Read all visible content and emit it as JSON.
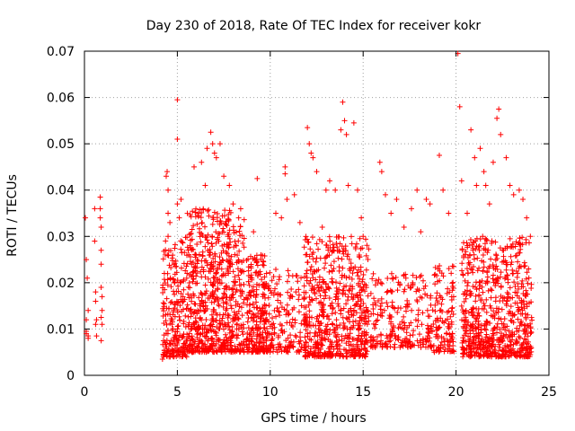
{
  "chart_data": {
    "type": "scatter",
    "title": "Day 230 of 2018, Rate Of TEC Index for receiver kokr",
    "xlabel": "GPS time / hours",
    "ylabel": "ROTI / TECUs",
    "xlim": [
      0,
      25
    ],
    "ylim": [
      0,
      0.07
    ],
    "xticks": [
      0,
      5,
      10,
      15,
      20,
      25
    ],
    "xtick_labels": [
      "0",
      "5",
      "10",
      "15",
      "20",
      "25"
    ],
    "yticks": [
      0,
      0.01,
      0.02,
      0.03,
      0.04,
      0.05,
      0.06,
      0.07
    ],
    "ytick_labels": [
      "0",
      "0.01",
      "0.02",
      "0.03",
      "0.04",
      "0.05",
      "0.06",
      "0.07"
    ],
    "grid": true,
    "marker": "+",
    "color": "#ff0000",
    "series": [
      {
        "name": "ROTI",
        "points": [
          [
            0.05,
            0.034
          ],
          [
            0.1,
            0.025
          ],
          [
            0.1,
            0.012
          ],
          [
            0.1,
            0.009
          ],
          [
            0.1,
            0.0095
          ],
          [
            0.15,
            0.021
          ],
          [
            0.2,
            0.0085
          ],
          [
            0.2,
            0.014
          ],
          [
            0.2,
            0.008
          ],
          [
            0.55,
            0.036
          ],
          [
            0.55,
            0.029
          ],
          [
            0.6,
            0.018
          ],
          [
            0.6,
            0.016
          ],
          [
            0.6,
            0.011
          ],
          [
            0.65,
            0.012
          ],
          [
            0.65,
            0.0085
          ],
          [
            0.85,
            0.0385
          ],
          [
            0.85,
            0.036
          ],
          [
            0.85,
            0.034
          ],
          [
            0.9,
            0.032
          ],
          [
            0.9,
            0.027
          ],
          [
            0.9,
            0.024
          ],
          [
            0.9,
            0.019
          ],
          [
            0.95,
            0.017
          ],
          [
            0.95,
            0.014
          ],
          [
            0.9,
            0.0125
          ],
          [
            0.95,
            0.011
          ],
          [
            0.9,
            0.0075
          ],
          [
            4.2,
            0.0035
          ],
          [
            4.3,
            0.022
          ],
          [
            4.35,
            0.026
          ],
          [
            4.4,
            0.043
          ],
          [
            4.45,
            0.044
          ],
          [
            4.5,
            0.04
          ],
          [
            4.5,
            0.035
          ],
          [
            4.5,
            0.03
          ],
          [
            4.6,
            0.033
          ],
          [
            5.0,
            0.0595
          ],
          [
            5.0,
            0.051
          ],
          [
            5.0,
            0.037
          ],
          [
            5.1,
            0.034
          ],
          [
            5.2,
            0.038
          ],
          [
            5.9,
            0.045
          ],
          [
            6.3,
            0.046
          ],
          [
            6.6,
            0.049
          ],
          [
            6.8,
            0.0525
          ],
          [
            6.9,
            0.05
          ],
          [
            7.0,
            0.048
          ],
          [
            7.3,
            0.05
          ],
          [
            7.1,
            0.047
          ],
          [
            6.5,
            0.041
          ],
          [
            7.5,
            0.043
          ],
          [
            7.8,
            0.041
          ],
          [
            8.0,
            0.037
          ],
          [
            8.3,
            0.034
          ],
          [
            9.1,
            0.031
          ],
          [
            9.3,
            0.0425
          ],
          [
            9.5,
            0.026
          ],
          [
            9.8,
            0.022
          ],
          [
            10.3,
            0.035
          ],
          [
            10.6,
            0.034
          ],
          [
            10.9,
            0.038
          ],
          [
            10.8,
            0.0435
          ],
          [
            10.8,
            0.045
          ],
          [
            11.3,
            0.039
          ],
          [
            11.6,
            0.033
          ],
          [
            12.0,
            0.0535
          ],
          [
            12.1,
            0.05
          ],
          [
            12.2,
            0.048
          ],
          [
            12.3,
            0.047
          ],
          [
            12.5,
            0.044
          ],
          [
            12.8,
            0.032
          ],
          [
            13.0,
            0.04
          ],
          [
            13.2,
            0.042
          ],
          [
            13.5,
            0.04
          ],
          [
            13.8,
            0.053
          ],
          [
            13.9,
            0.059
          ],
          [
            14.0,
            0.055
          ],
          [
            14.1,
            0.052
          ],
          [
            14.2,
            0.041
          ],
          [
            14.5,
            0.0545
          ],
          [
            14.7,
            0.04
          ],
          [
            14.9,
            0.034
          ],
          [
            15.0,
            0.03
          ],
          [
            15.9,
            0.046
          ],
          [
            16.0,
            0.044
          ],
          [
            16.2,
            0.039
          ],
          [
            16.5,
            0.035
          ],
          [
            16.8,
            0.038
          ],
          [
            17.2,
            0.032
          ],
          [
            17.6,
            0.036
          ],
          [
            17.9,
            0.04
          ],
          [
            18.1,
            0.031
          ],
          [
            18.4,
            0.038
          ],
          [
            18.6,
            0.037
          ],
          [
            19.1,
            0.0475
          ],
          [
            19.3,
            0.04
          ],
          [
            19.6,
            0.035
          ],
          [
            20.1,
            0.0695
          ],
          [
            20.2,
            0.058
          ],
          [
            20.3,
            0.042
          ],
          [
            20.6,
            0.035
          ],
          [
            20.8,
            0.053
          ],
          [
            21.0,
            0.047
          ],
          [
            21.1,
            0.041
          ],
          [
            21.3,
            0.049
          ],
          [
            21.5,
            0.044
          ],
          [
            21.6,
            0.041
          ],
          [
            21.8,
            0.037
          ],
          [
            22.0,
            0.046
          ],
          [
            22.2,
            0.0555
          ],
          [
            22.3,
            0.0575
          ],
          [
            22.4,
            0.052
          ],
          [
            22.7,
            0.047
          ],
          [
            22.9,
            0.041
          ],
          [
            23.1,
            0.039
          ],
          [
            23.4,
            0.04
          ],
          [
            23.6,
            0.038
          ],
          [
            23.8,
            0.034
          ],
          [
            24.0,
            0.03
          ]
        ],
        "clusters": [
          {
            "x": [
              4.2,
              5.5
            ],
            "y": [
              0.004,
              0.03
            ],
            "n": 220
          },
          {
            "x": [
              5.5,
              8.6
            ],
            "y": [
              0.005,
              0.036
            ],
            "n": 700
          },
          {
            "x": [
              8.7,
              9.8
            ],
            "y": [
              0.005,
              0.026
            ],
            "n": 220
          },
          {
            "x": [
              9.8,
              11.7
            ],
            "y": [
              0.005,
              0.023
            ],
            "n": 160
          },
          {
            "x": [
              11.8,
              15.3
            ],
            "y": [
              0.004,
              0.03
            ],
            "n": 600
          },
          {
            "x": [
              15.4,
              18.7
            ],
            "y": [
              0.006,
              0.022
            ],
            "n": 240
          },
          {
            "x": [
              18.7,
              19.9
            ],
            "y": [
              0.005,
              0.024
            ],
            "n": 120
          },
          {
            "x": [
              20.3,
              24.1
            ],
            "y": [
              0.004,
              0.03
            ],
            "n": 700
          }
        ]
      }
    ]
  }
}
